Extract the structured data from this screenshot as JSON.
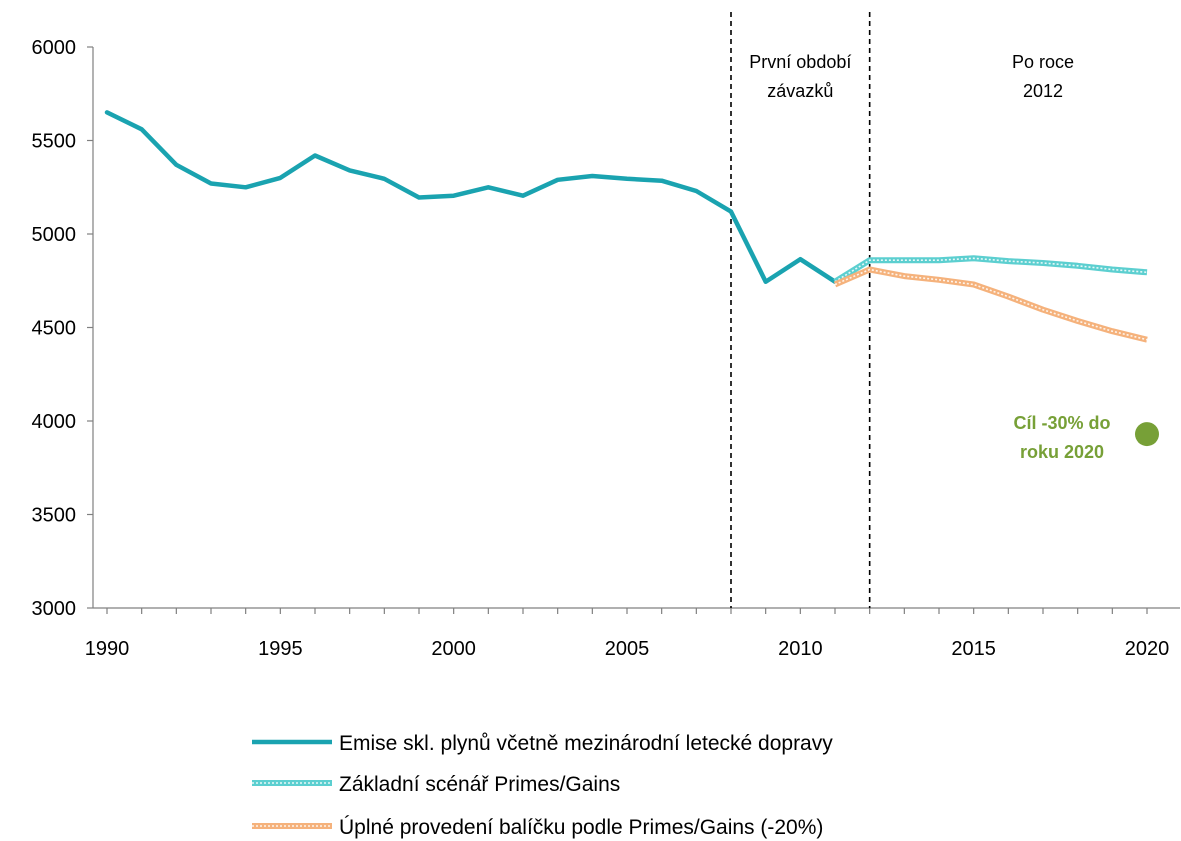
{
  "chart_data": {
    "type": "line",
    "xlim": [
      1990,
      2020
    ],
    "ylim": [
      3000,
      6000
    ],
    "x_ticks": [
      "1990",
      "1995",
      "2000",
      "2005",
      "2010",
      "2015",
      "2020"
    ],
    "y_ticks": [
      "3000",
      "3500",
      "4000",
      "4500",
      "5000",
      "5500",
      "6000"
    ],
    "grid": false,
    "legend_position": "bottom",
    "series": [
      {
        "name": "Emise skl. plynů včetně mezinárodní letecké dopravy",
        "style": "solid",
        "color": "#1aa3b0",
        "x": [
          1990,
          1991,
          1992,
          1993,
          1994,
          1995,
          1996,
          1997,
          1998,
          1999,
          2000,
          2001,
          2002,
          2003,
          2004,
          2005,
          2006,
          2007,
          2008,
          2009,
          2010,
          2011
        ],
        "y": [
          5650,
          5560,
          5370,
          5270,
          5250,
          5300,
          5420,
          5340,
          5295,
          5195,
          5205,
          5250,
          5205,
          5290,
          5310,
          5295,
          5285,
          5230,
          5120,
          4745,
          4865,
          4745
        ]
      },
      {
        "name": "Základní scénář Primes/Gains",
        "style": "dotted-band",
        "color": "#5ccfd0",
        "x": [
          2011,
          2012,
          2013,
          2014,
          2015,
          2016,
          2017,
          2018,
          2019,
          2020
        ],
        "y": [
          4745,
          4860,
          4860,
          4860,
          4870,
          4855,
          4845,
          4830,
          4810,
          4795
        ]
      },
      {
        "name": "Úplné provedení balíčku podle Primes/Gains (-20%)",
        "style": "dotted-band",
        "color": "#f5b27c",
        "x": [
          2011,
          2012,
          2013,
          2014,
          2015,
          2016,
          2017,
          2018,
          2019,
          2020
        ],
        "y": [
          4730,
          4810,
          4775,
          4755,
          4730,
          4665,
          4595,
          4535,
          4480,
          4435
        ]
      }
    ],
    "vertical_lines": [
      2008,
      2012
    ],
    "regions": {
      "first": [
        "První období",
        "závazků"
      ],
      "after": [
        "Po roce",
        "2012"
      ]
    },
    "target": {
      "x": 2020,
      "y": 3930,
      "color": "#77a037",
      "label": [
        "Cíl -30% do",
        "roku 2020"
      ]
    }
  }
}
